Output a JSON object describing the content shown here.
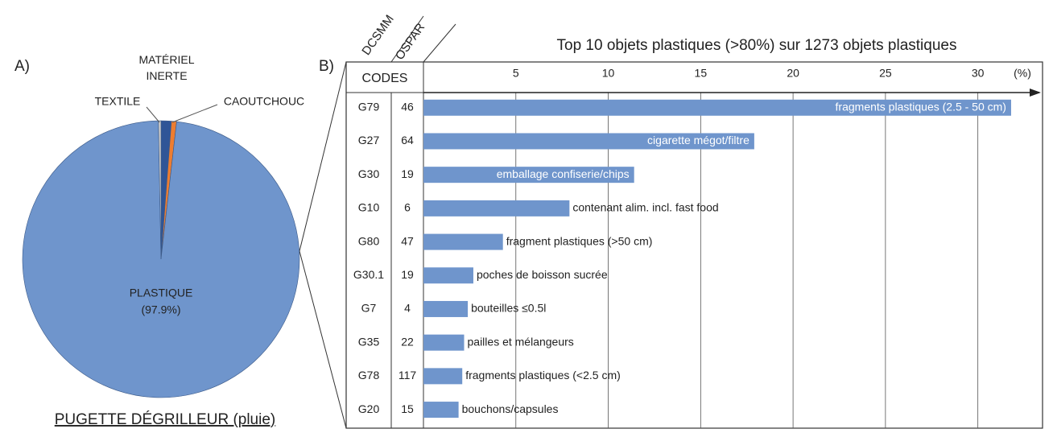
{
  "chart_data": [
    {
      "type": "pie",
      "panel": "A)",
      "title": "PUGETTE DÉGRILLEUR (pluie)",
      "categories": [
        "MATÉRIEL INERTE",
        "CAOUTCHOUC",
        "PLASTIQUE",
        "TEXTILE"
      ],
      "values": [
        1.2,
        0.6,
        97.9,
        0.3
      ],
      "value_labels": [
        null,
        null,
        "(97.9%)",
        null
      ],
      "colors": [
        "#2f5597",
        "#ed7d31",
        "#6f95cc",
        "#c9c9c9"
      ]
    },
    {
      "type": "barh",
      "panel": "B)",
      "title": "Top 10 objets plastiques (>80%) sur 1273 objets plastiques",
      "header": "CODES",
      "code_columns": [
        {
          "name": "DCSMM",
          "values": [
            "G79",
            "G27",
            "G30",
            "G10",
            "G80",
            "G30.1",
            "G7",
            "G35",
            "G78",
            "G20"
          ]
        },
        {
          "name": "OSPAR",
          "values": [
            "46",
            "64",
            "19",
            "6",
            "47",
            "19",
            "4",
            "22",
            "117",
            "15"
          ]
        }
      ],
      "categories": [
        "fragments plastiques (2.5 - 50 cm)",
        "cigarette mégot/filtre",
        "emballage confiserie/chips",
        "contenant alim. incl. fast food",
        "fragment plastiques (>50 cm)",
        "poches de boisson sucrée",
        "bouteilles ≤0.5l",
        "pailles et mélangeurs",
        "fragments plastiques (<2.5 cm)",
        "bouchons/capsules"
      ],
      "values": [
        31.8,
        17.9,
        11.4,
        7.9,
        4.3,
        2.7,
        2.4,
        2.2,
        2.1,
        1.9
      ],
      "color": "#6f95cc",
      "xlim": [
        0,
        33.5
      ],
      "xticks": [
        5,
        10,
        15,
        20,
        25,
        30
      ],
      "x_unit": "(%)",
      "grid": true
    }
  ]
}
